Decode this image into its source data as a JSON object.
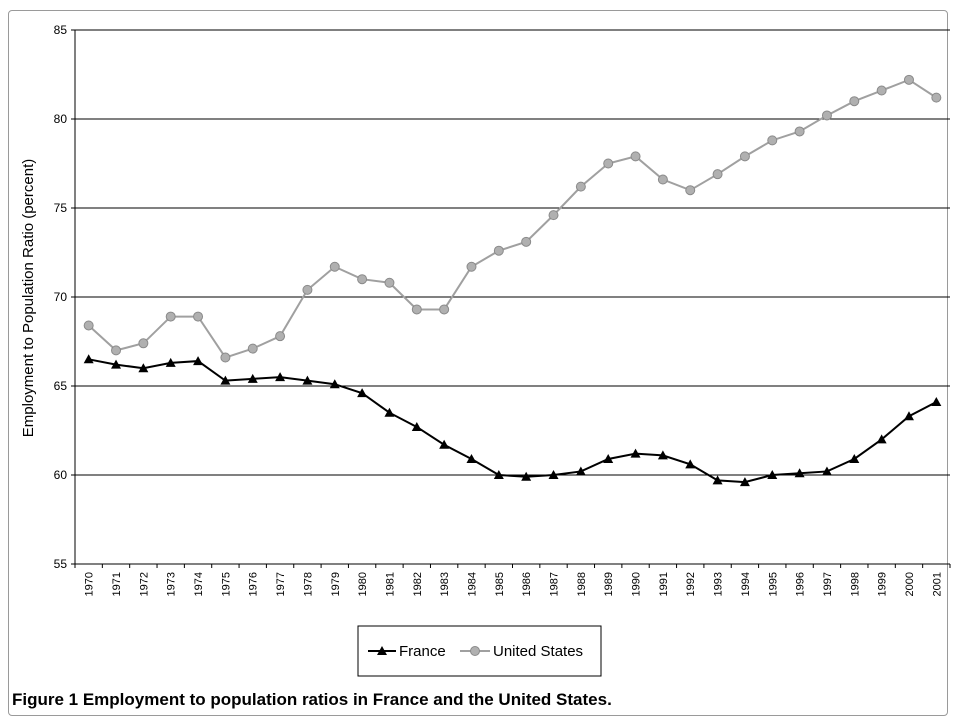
{
  "caption": "Figure 1 Employment to population ratios in France and the United States.",
  "chart_data": {
    "type": "line",
    "title": "",
    "xlabel": "",
    "ylabel": "Employment to Population Ratio (percent)",
    "ylim": [
      55,
      85
    ],
    "yticks": [
      55,
      60,
      65,
      70,
      75,
      80,
      85
    ],
    "grid": "horizontal",
    "legend_position": "bottom",
    "x": [
      "1970",
      "1971",
      "1972",
      "1973",
      "1974",
      "1975",
      "1976",
      "1977",
      "1978",
      "1979",
      "1980",
      "1981",
      "1982",
      "1983",
      "1984",
      "1985",
      "1986",
      "1987",
      "1988",
      "1989",
      "1990",
      "1991",
      "1992",
      "1993",
      "1994",
      "1995",
      "1996",
      "1997",
      "1998",
      "1999",
      "2000",
      "2001"
    ],
    "series": [
      {
        "name": "France",
        "color": "#000000",
        "marker": "triangle",
        "values": [
          66.5,
          66.2,
          66.0,
          66.3,
          66.4,
          65.3,
          65.4,
          65.5,
          65.3,
          65.1,
          64.6,
          63.5,
          62.7,
          61.7,
          60.9,
          60.0,
          59.9,
          60.0,
          60.2,
          60.9,
          61.2,
          61.1,
          60.6,
          59.7,
          59.6,
          60.0,
          60.1,
          60.2,
          60.9,
          62.0,
          63.3,
          64.1
        ]
      },
      {
        "name": "United States",
        "color": "#a0a0a0",
        "marker": "circle",
        "values": [
          68.4,
          67.0,
          67.4,
          68.9,
          68.9,
          66.6,
          67.1,
          67.8,
          70.4,
          71.7,
          71.0,
          70.8,
          69.3,
          69.3,
          71.7,
          72.6,
          73.1,
          74.6,
          76.2,
          77.5,
          77.9,
          76.6,
          76.0,
          76.9,
          77.9,
          78.8,
          79.3,
          80.2,
          81.0,
          81.6,
          82.2,
          81.2
        ]
      }
    ]
  }
}
